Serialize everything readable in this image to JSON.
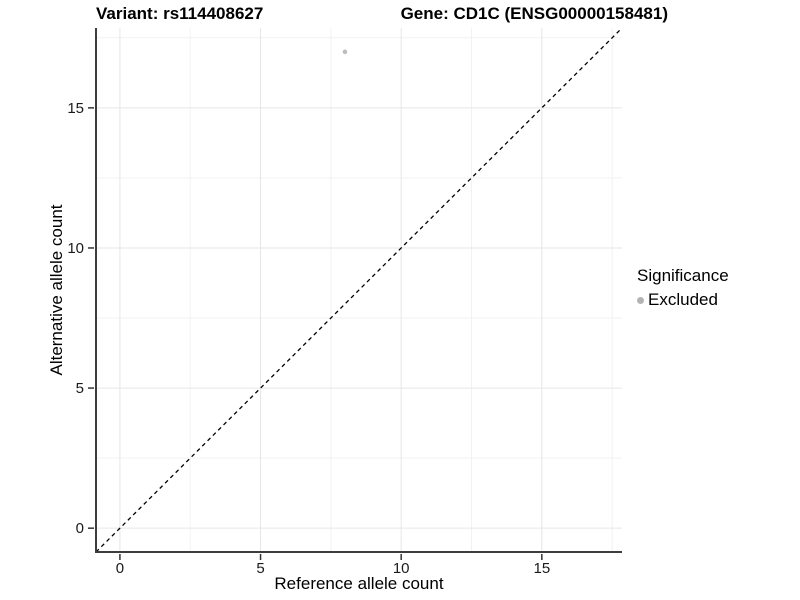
{
  "plot": {
    "title_left": "Variant: rs114408627",
    "title_right": "Gene: CD1C (ENSG00000158481)"
  },
  "legend": {
    "title": "Significance",
    "items": [
      {
        "label": "Excluded",
        "color": "#b3b3b3"
      }
    ]
  },
  "chart_data": {
    "type": "scatter",
    "title": "Variant: rs114408627 — Gene: CD1C (ENSG00000158481)",
    "xlabel": "Reference allele count",
    "ylabel": "Alternative allele count",
    "xlim": [
      0,
      17
    ],
    "ylim": [
      0,
      17
    ],
    "expand_frac": 0.05,
    "x_ticks": [
      0,
      5,
      10,
      15
    ],
    "y_ticks": [
      0,
      5,
      10,
      15
    ],
    "x_minor_ticks": [
      2.5,
      7.5,
      12.5,
      17.5
    ],
    "y_minor_ticks": [
      2.5,
      7.5,
      12.5,
      17.5
    ],
    "grid": "major+minor",
    "legend_position": "right",
    "series": [
      {
        "name": "Excluded",
        "color": "#bdbdbd",
        "marker": "circle",
        "points": [
          {
            "x": 8,
            "y": 17
          }
        ]
      }
    ],
    "reference_line": {
      "kind": "identity y=x",
      "style": "dashed",
      "color": "#000000"
    }
  },
  "colors": {
    "background": "#ffffff",
    "grid_major": "#e6e6e6",
    "grid_minor": "#f2f2f2",
    "axis_line": "#3d3d3d",
    "tick_mark": "#333333",
    "tick_label": "#1a1a1a",
    "point": "#bdbdbd",
    "legend_point": "#b3b3b3"
  }
}
